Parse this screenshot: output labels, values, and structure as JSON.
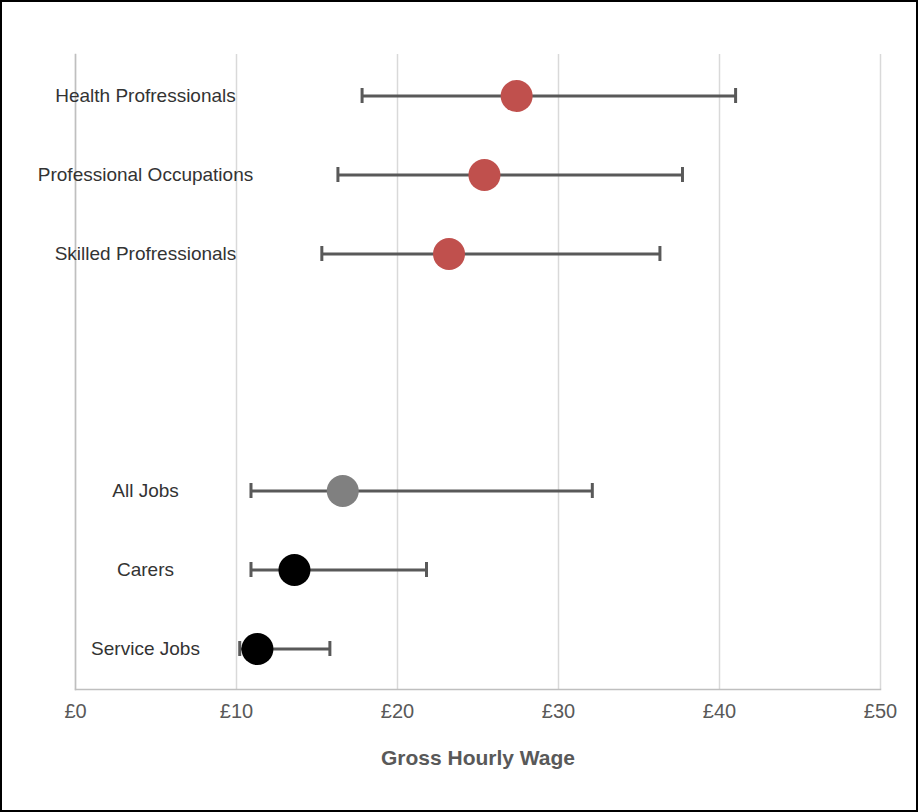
{
  "chart_data": {
    "type": "dot",
    "orientation": "horizontal",
    "categories": [
      "Health Profressionals",
      "Professional Occupations",
      "Skilled Profressionals",
      null,
      null,
      "All Jobs",
      "Carers",
      "Service Jobs"
    ],
    "values": [
      27.4,
      25.4,
      23.2,
      null,
      null,
      16.6,
      13.6,
      11.3
    ],
    "lower": [
      17.8,
      16.3,
      15.3,
      null,
      null,
      10.9,
      10.9,
      10.2
    ],
    "upper": [
      41.0,
      37.7,
      36.3,
      null,
      null,
      32.1,
      21.8,
      15.8
    ],
    "colors": [
      "#c0504d",
      "#c0504d",
      "#c0504d",
      null,
      null,
      "#808080",
      "#000000",
      "#000000"
    ],
    "xlabel": "Gross Hourly Wage",
    "xlim": [
      0,
      50
    ],
    "xticks": [
      {
        "value": 0,
        "label": "£0"
      },
      {
        "value": 10,
        "label": "£10"
      },
      {
        "value": 20,
        "label": "£20"
      },
      {
        "value": 30,
        "label": "£30"
      },
      {
        "value": 40,
        "label": "£40"
      },
      {
        "value": 50,
        "label": "£50"
      }
    ],
    "grid": true
  }
}
